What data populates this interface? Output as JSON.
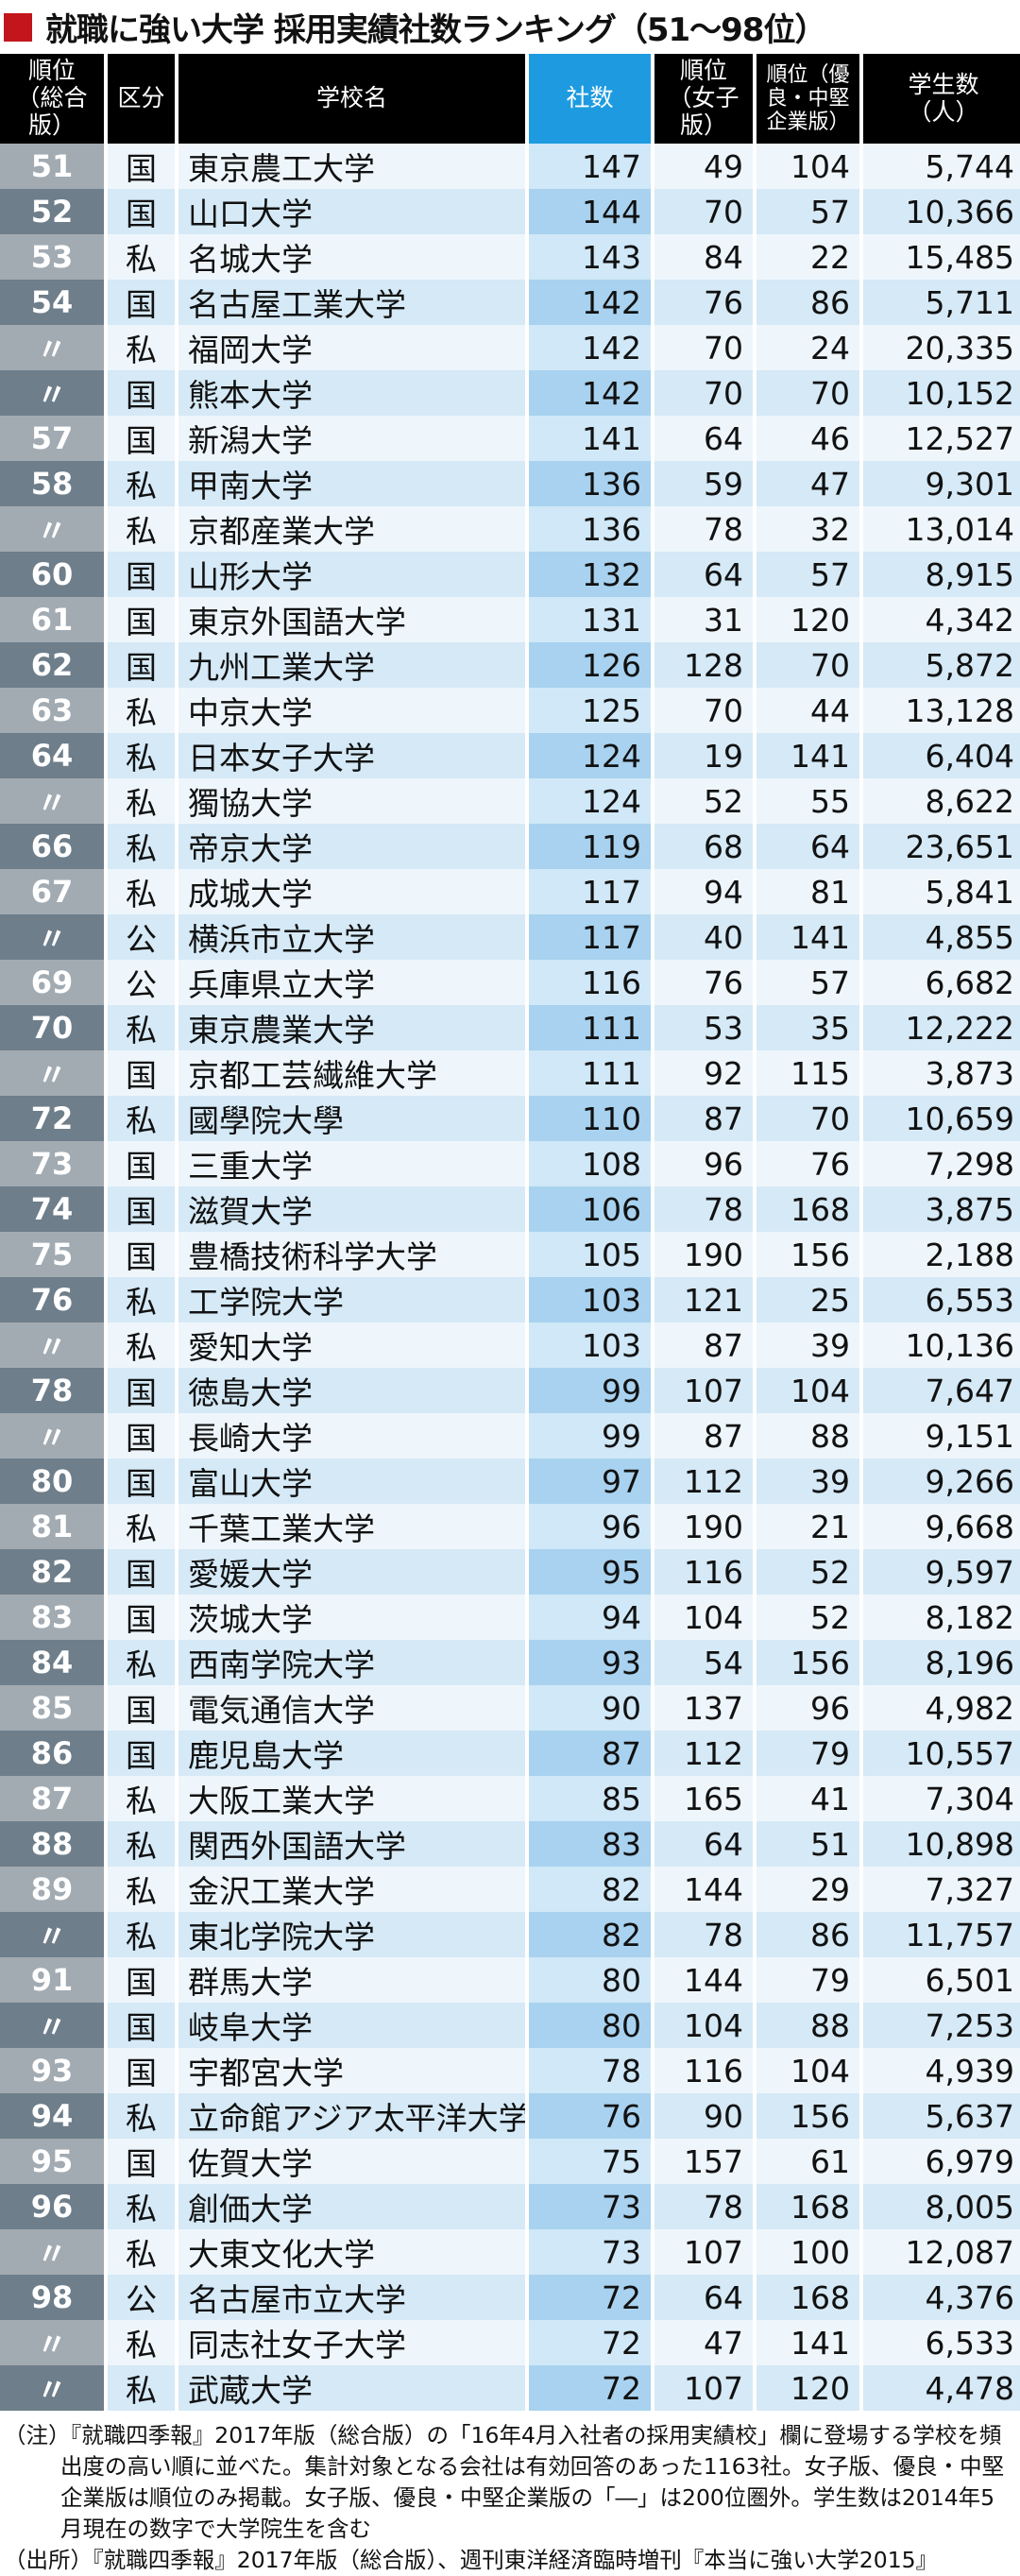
{
  "title": "就職に強い大学 採用実績社数ランキング（51～98位）",
  "headers": {
    "rank": "順位（総合版）",
    "kubun": "区分",
    "name": "学校名",
    "sha": "社数",
    "women": "順位（女子版）",
    "yuryo": "順位（優良・中堅企業版）",
    "students": "学生数（人）"
  },
  "colors": {
    "accent_red": "#c3161c",
    "sha_header": "#1e9be0"
  },
  "rows": [
    [
      "51",
      "国",
      "東京農工大学",
      "147",
      "49",
      "104",
      "5,744"
    ],
    [
      "52",
      "国",
      "山口大学",
      "144",
      "70",
      "57",
      "10,366"
    ],
    [
      "53",
      "私",
      "名城大学",
      "143",
      "84",
      "22",
      "15,485"
    ],
    [
      "54",
      "国",
      "名古屋工業大学",
      "142",
      "76",
      "86",
      "5,711"
    ],
    [
      "〃",
      "私",
      "福岡大学",
      "142",
      "70",
      "24",
      "20,335"
    ],
    [
      "〃",
      "国",
      "熊本大学",
      "142",
      "70",
      "70",
      "10,152"
    ],
    [
      "57",
      "国",
      "新潟大学",
      "141",
      "64",
      "46",
      "12,527"
    ],
    [
      "58",
      "私",
      "甲南大学",
      "136",
      "59",
      "47",
      "9,301"
    ],
    [
      "〃",
      "私",
      "京都産業大学",
      "136",
      "78",
      "32",
      "13,014"
    ],
    [
      "60",
      "国",
      "山形大学",
      "132",
      "64",
      "57",
      "8,915"
    ],
    [
      "61",
      "国",
      "東京外国語大学",
      "131",
      "31",
      "120",
      "4,342"
    ],
    [
      "62",
      "国",
      "九州工業大学",
      "126",
      "128",
      "70",
      "5,872"
    ],
    [
      "63",
      "私",
      "中京大学",
      "125",
      "70",
      "44",
      "13,128"
    ],
    [
      "64",
      "私",
      "日本女子大学",
      "124",
      "19",
      "141",
      "6,404"
    ],
    [
      "〃",
      "私",
      "獨協大学",
      "124",
      "52",
      "55",
      "8,622"
    ],
    [
      "66",
      "私",
      "帝京大学",
      "119",
      "68",
      "64",
      "23,651"
    ],
    [
      "67",
      "私",
      "成城大学",
      "117",
      "94",
      "81",
      "5,841"
    ],
    [
      "〃",
      "公",
      "横浜市立大学",
      "117",
      "40",
      "141",
      "4,855"
    ],
    [
      "69",
      "公",
      "兵庫県立大学",
      "116",
      "76",
      "57",
      "6,682"
    ],
    [
      "70",
      "私",
      "東京農業大学",
      "111",
      "53",
      "35",
      "12,222"
    ],
    [
      "〃",
      "国",
      "京都工芸繊維大学",
      "111",
      "92",
      "115",
      "3,873"
    ],
    [
      "72",
      "私",
      "國學院大學",
      "110",
      "87",
      "70",
      "10,659"
    ],
    [
      "73",
      "国",
      "三重大学",
      "108",
      "96",
      "76",
      "7,298"
    ],
    [
      "74",
      "国",
      "滋賀大学",
      "106",
      "78",
      "168",
      "3,875"
    ],
    [
      "75",
      "国",
      "豊橋技術科学大学",
      "105",
      "190",
      "156",
      "2,188"
    ],
    [
      "76",
      "私",
      "工学院大学",
      "103",
      "121",
      "25",
      "6,553"
    ],
    [
      "〃",
      "私",
      "愛知大学",
      "103",
      "87",
      "39",
      "10,136"
    ],
    [
      "78",
      "国",
      "徳島大学",
      "99",
      "107",
      "104",
      "7,647"
    ],
    [
      "〃",
      "国",
      "長崎大学",
      "99",
      "87",
      "88",
      "9,151"
    ],
    [
      "80",
      "国",
      "富山大学",
      "97",
      "112",
      "39",
      "9,266"
    ],
    [
      "81",
      "私",
      "千葉工業大学",
      "96",
      "190",
      "21",
      "9,668"
    ],
    [
      "82",
      "国",
      "愛媛大学",
      "95",
      "116",
      "52",
      "9,597"
    ],
    [
      "83",
      "国",
      "茨城大学",
      "94",
      "104",
      "52",
      "8,182"
    ],
    [
      "84",
      "私",
      "西南学院大学",
      "93",
      "54",
      "156",
      "8,196"
    ],
    [
      "85",
      "国",
      "電気通信大学",
      "90",
      "137",
      "96",
      "4,982"
    ],
    [
      "86",
      "国",
      "鹿児島大学",
      "87",
      "112",
      "79",
      "10,557"
    ],
    [
      "87",
      "私",
      "大阪工業大学",
      "85",
      "165",
      "41",
      "7,304"
    ],
    [
      "88",
      "私",
      "関西外国語大学",
      "83",
      "64",
      "51",
      "10,898"
    ],
    [
      "89",
      "私",
      "金沢工業大学",
      "82",
      "144",
      "29",
      "7,327"
    ],
    [
      "〃",
      "私",
      "東北学院大学",
      "82",
      "78",
      "86",
      "11,757"
    ],
    [
      "91",
      "国",
      "群馬大学",
      "80",
      "144",
      "79",
      "6,501"
    ],
    [
      "〃",
      "国",
      "岐阜大学",
      "80",
      "104",
      "88",
      "7,253"
    ],
    [
      "93",
      "国",
      "宇都宮大学",
      "78",
      "116",
      "104",
      "4,939"
    ],
    [
      "94",
      "私",
      "立命館アジア太平洋大学",
      "76",
      "90",
      "156",
      "5,637"
    ],
    [
      "95",
      "国",
      "佐賀大学",
      "75",
      "157",
      "61",
      "6,979"
    ],
    [
      "96",
      "私",
      "創価大学",
      "73",
      "78",
      "168",
      "8,005"
    ],
    [
      "〃",
      "私",
      "大東文化大学",
      "73",
      "107",
      "100",
      "12,087"
    ],
    [
      "98",
      "公",
      "名古屋市立大学",
      "72",
      "64",
      "168",
      "4,376"
    ],
    [
      "〃",
      "私",
      "同志社女子大学",
      "72",
      "47",
      "141",
      "6,533"
    ],
    [
      "〃",
      "私",
      "武蔵大学",
      "72",
      "107",
      "120",
      "4,478"
    ]
  ],
  "notes": {
    "note_label": "（注）",
    "note_text": "『就職四季報』2017年版（総合版）の「16年4月入社者の採用実績校」欄に登場する学校を頻出度の高い順に並べた。集計対象となる会社は有効回答のあった1163社。女子版、優良・中堅企業版は順位のみ掲載。女子版、優良・中堅企業版の「―」は200位圏外。学生数は2014年5月現在の数字で大学院生を含む",
    "source_label": "（出所）",
    "source_text": "『就職四季報』2017年版（総合版）、週刊東洋経済臨時増刊『本当に強い大学2015』"
  }
}
